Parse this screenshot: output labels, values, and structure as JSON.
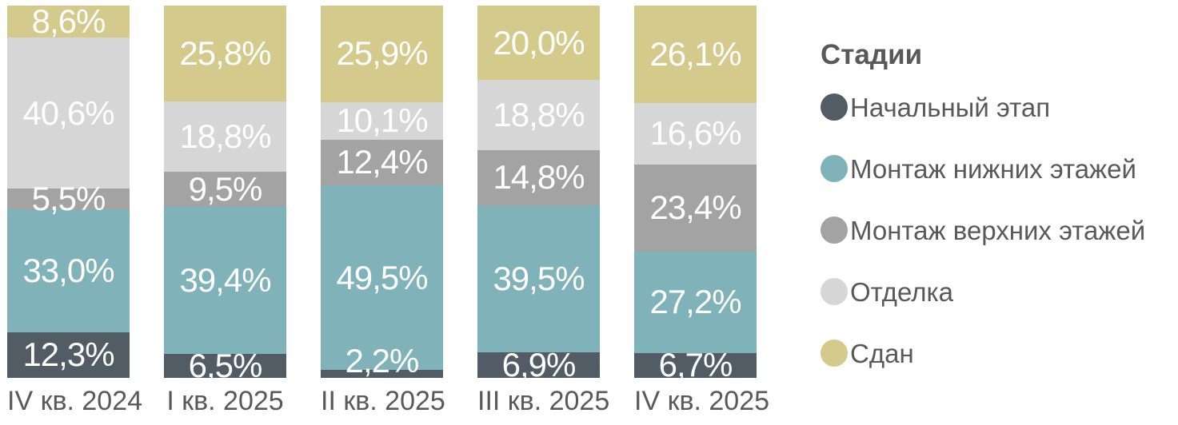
{
  "chart_data": {
    "type": "bar",
    "variant": "stacked-100",
    "orientation": "vertical",
    "value_unit": "%",
    "legend_title": "Стадии",
    "legend_position": "right",
    "grid": false,
    "axis_range": [
      0,
      100
    ],
    "categories": [
      "IV кв. 2024",
      "I кв. 2025",
      "II кв. 2025",
      "III кв. 2025",
      "IV кв. 2025"
    ],
    "series": [
      {
        "name": "Начальный этап",
        "color": "#525c65",
        "values": [
          12.3,
          6.5,
          2.2,
          6.9,
          6.7
        ],
        "labels": [
          "12,3%",
          "6,5%",
          "2,2%",
          "6,9%",
          "6,7%"
        ]
      },
      {
        "name": "Монтаж нижних этажей",
        "color": "#7fb2b9",
        "values": [
          33.0,
          39.4,
          49.5,
          39.5,
          27.2
        ],
        "labels": [
          "33,0%",
          "39,4%",
          "49,5%",
          "39,5%",
          "27,2%"
        ]
      },
      {
        "name": "Монтаж верхних этажей",
        "color": "#a3a3a3",
        "values": [
          5.5,
          9.5,
          12.4,
          14.8,
          23.4
        ],
        "labels": [
          "5,5%",
          "9,5%",
          "12,4%",
          "14,8%",
          "23,4%"
        ]
      },
      {
        "name": "Отделка",
        "color": "#d6d6d6",
        "values": [
          40.6,
          18.8,
          10.1,
          18.8,
          16.6
        ],
        "labels": [
          "40,6%",
          "18,8%",
          "10,1%",
          "18,8%",
          "16,6%"
        ]
      },
      {
        "name": "Сдан",
        "color": "#d3ca8b",
        "values": [
          8.6,
          25.8,
          25.9,
          20.0,
          26.1
        ],
        "labels": [
          "8,6%",
          "25,8%",
          "25,9%",
          "20,0%",
          "26,1%"
        ]
      }
    ],
    "colors": {
      "segment_label_text": "#ffffff",
      "axis_text": "#595959",
      "background": "#ffffff"
    }
  }
}
